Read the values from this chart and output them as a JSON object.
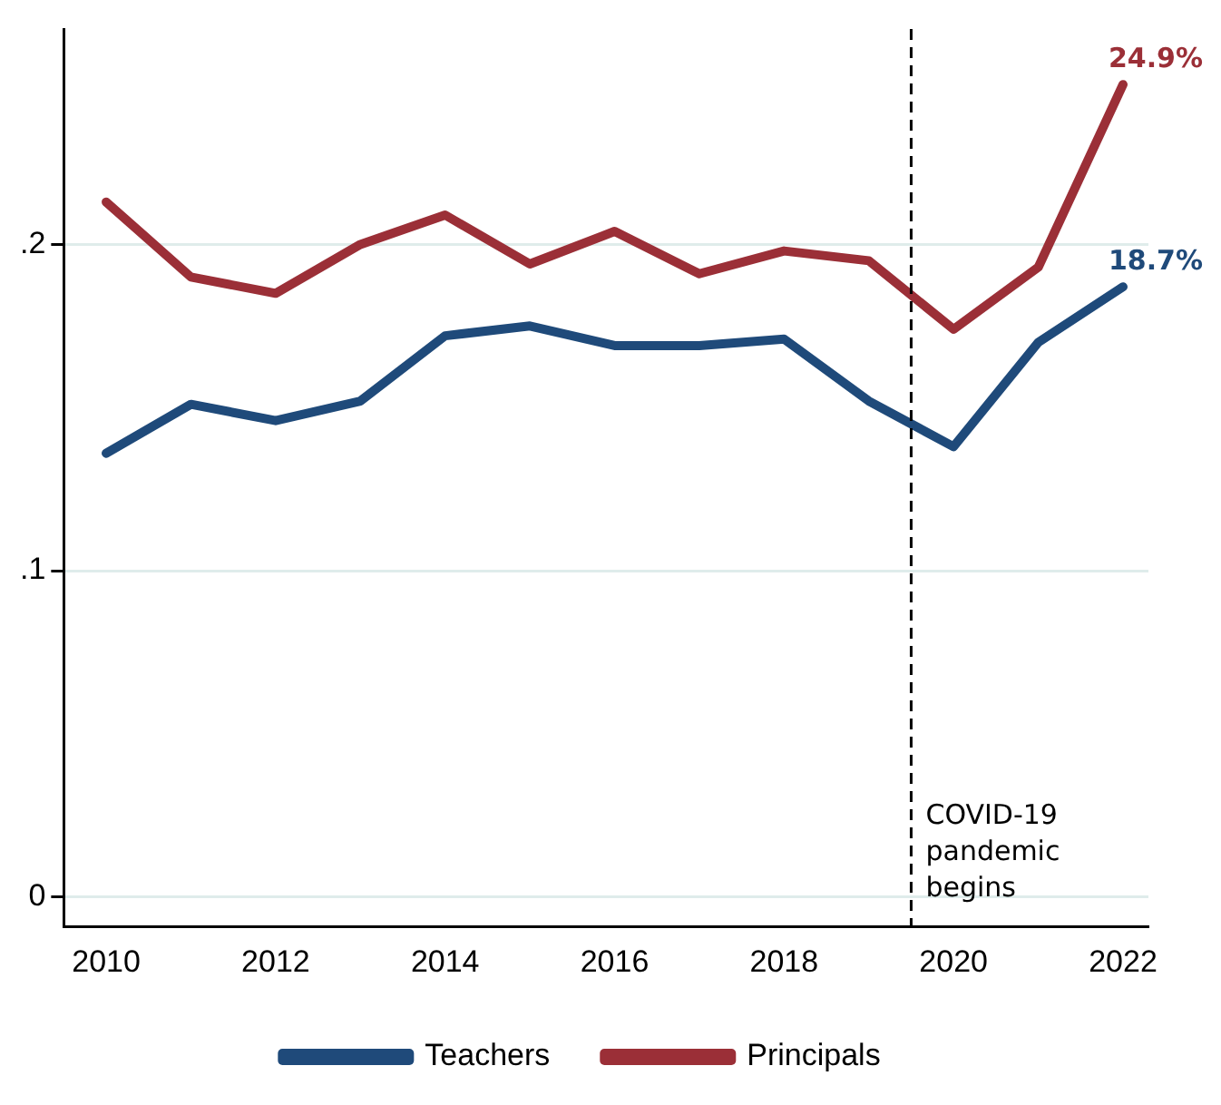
{
  "chart_data": {
    "type": "line",
    "x": [
      2010,
      2011,
      2012,
      2013,
      2014,
      2015,
      2016,
      2017,
      2018,
      2019,
      2020,
      2021,
      2022
    ],
    "series": [
      {
        "name": "Teachers",
        "color": "#1f4a7a",
        "values": [
          0.136,
          0.151,
          0.146,
          0.152,
          0.172,
          0.175,
          0.169,
          0.169,
          0.171,
          0.152,
          0.138,
          0.17,
          0.187
        ],
        "value_labels": [
          null,
          null,
          null,
          null,
          null,
          null,
          null,
          null,
          null,
          null,
          null,
          null,
          "18.7%"
        ]
      },
      {
        "name": "Principals",
        "color": "#9b2f37",
        "values": [
          0.213,
          0.19,
          0.185,
          0.2,
          0.209,
          0.194,
          0.204,
          0.191,
          0.198,
          0.195,
          0.174,
          0.193,
          0.249
        ],
        "value_labels": [
          null,
          null,
          null,
          null,
          null,
          null,
          null,
          null,
          null,
          null,
          null,
          null,
          "24.9%"
        ]
      }
    ],
    "xlim": [
      2009.5,
      2022.3
    ],
    "xticks": [
      2010,
      2012,
      2014,
      2016,
      2018,
      2020,
      2022
    ],
    "ylim": [
      -0.009,
      0.266
    ],
    "yticks": [
      0,
      {
        "value": 0.1,
        "label": ".1"
      },
      {
        "value": 0.2,
        "label": ".2"
      }
    ],
    "grid": "y",
    "legend": "bottom",
    "marker": "none",
    "line_style": "solid",
    "ref_lines": [
      {
        "axis": "x",
        "value": 2019.5,
        "label": "COVID-19 pandemic begins",
        "line_style": "dashed",
        "color": "#000000"
      }
    ]
  }
}
